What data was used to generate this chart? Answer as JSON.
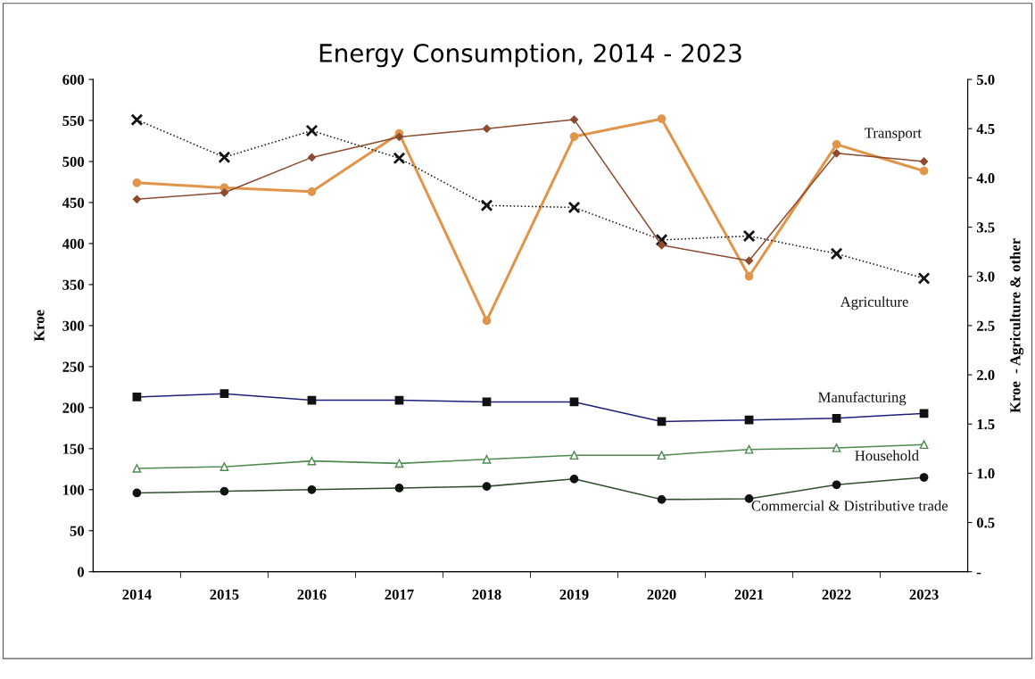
{
  "chart_data": {
    "type": "line",
    "title": "Energy Consumption, 2014 - 2023",
    "ylabel": "Kroe",
    "y2label": "Kroe  - Agriculture & other",
    "categories": [
      "2014",
      "2015",
      "2016",
      "2017",
      "2018",
      "2019",
      "2020",
      "2021",
      "2022",
      "2023"
    ],
    "ylim": [
      0,
      600
    ],
    "yticks": [
      0,
      50,
      100,
      150,
      200,
      250,
      300,
      350,
      400,
      450,
      500,
      550,
      600
    ],
    "y2lim": [
      0,
      5
    ],
    "y2ticks": [
      {
        "value": 0,
        "label": "-"
      },
      {
        "value": 0.5,
        "label": "0.5"
      },
      {
        "value": 1,
        "label": "1.0"
      },
      {
        "value": 1.5,
        "label": "1.5"
      },
      {
        "value": 2,
        "label": "2.0"
      },
      {
        "value": 2.5,
        "label": "2.5"
      },
      {
        "value": 3,
        "label": "3.0"
      },
      {
        "value": 3.5,
        "label": "3.5"
      },
      {
        "value": 4,
        "label": "4.0"
      },
      {
        "value": 4.5,
        "label": "4.5"
      },
      {
        "value": 5,
        "label": "5.0"
      }
    ],
    "grid": false,
    "legend": false,
    "series": [
      {
        "name": "Transport",
        "color": "#8c4a2f",
        "marker": "diamond",
        "line_style": "solid",
        "values": [
          454,
          462,
          505,
          530,
          540,
          551,
          398,
          379,
          510,
          500
        ]
      },
      {
        "color": "#e0954a",
        "axis": "y2",
        "marker": "circle",
        "line_style": "solid",
        "values": [
          3.95,
          3.9,
          3.86,
          4.45,
          2.55,
          4.42,
          4.6,
          3.0,
          4.34,
          4.07
        ]
      },
      {
        "name": "Agriculture",
        "color": "#111111",
        "axis": "y2",
        "marker": "cross",
        "line_style": "dotted",
        "values": [
          4.59,
          4.21,
          4.48,
          4.2,
          3.72,
          3.7,
          3.37,
          3.41,
          3.23,
          2.98
        ]
      },
      {
        "name": "Manufacturing",
        "color": "#1f1f7a",
        "marker": "square",
        "line_style": "solid",
        "values": [
          213,
          217,
          209,
          209,
          207,
          207,
          183,
          185,
          187,
          193
        ]
      },
      {
        "name": "Household",
        "color": "#4e8a4e",
        "marker": "triangle",
        "line_style": "solid",
        "values": [
          126,
          128,
          135,
          132,
          137,
          142,
          142,
          149,
          151,
          155
        ]
      },
      {
        "name": "Commercial & Distributive trade",
        "color": "#2f4f2f",
        "marker": "circle",
        "line_style": "solid",
        "values": [
          96,
          98,
          100,
          102,
          104,
          113,
          88,
          89,
          106,
          115
        ]
      }
    ]
  }
}
